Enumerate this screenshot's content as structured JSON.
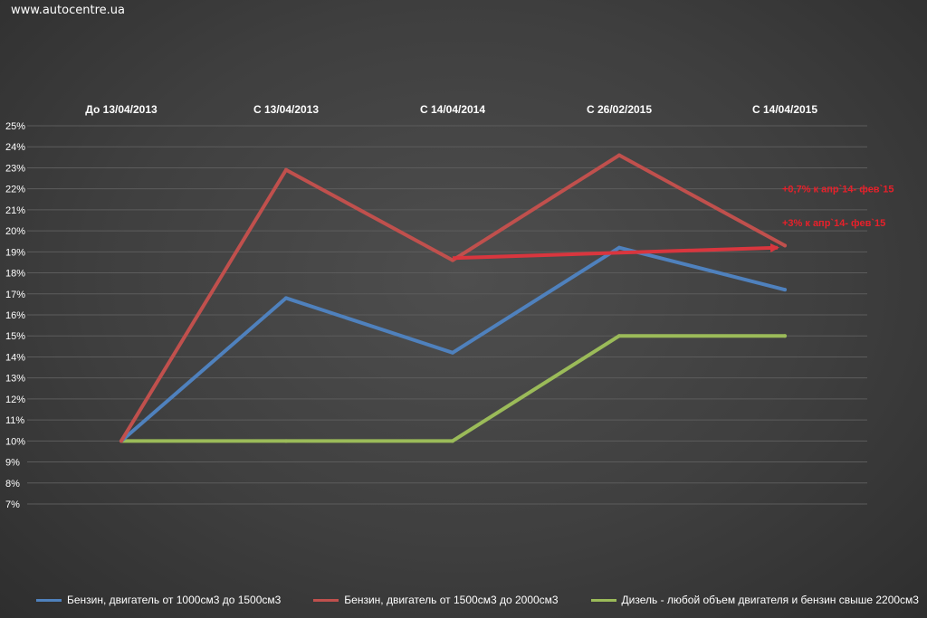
{
  "watermark": "www.autocentre.ua",
  "chart_data": {
    "type": "line",
    "title": "",
    "xlabel": "",
    "ylabel": "",
    "categories": [
      "До 13/04/2013",
      "С 13/04/2013",
      "С 14/04/2014",
      "С 26/02/2015",
      "С 14/04/2015"
    ],
    "y_ticks": [
      "25%",
      "24%",
      "23%",
      "22%",
      "21%",
      "20%",
      "19%",
      "18%",
      "17%",
      "16%",
      "15%",
      "14%",
      "13%",
      "12%",
      "11%",
      "10%",
      "9%",
      "8%",
      "7%"
    ],
    "ylim": [
      7,
      25
    ],
    "grid": true,
    "legend_position": "bottom",
    "series": [
      {
        "name": "Бензин, двигатель от 1000см3  до 1500см3",
        "color": "#4f81bd",
        "values": [
          10,
          16.8,
          14.2,
          19.2,
          17.2
        ]
      },
      {
        "name": "Бензин, двигатель от 1500см3  до 2000см3",
        "color": "#c0504d",
        "values": [
          10,
          22.9,
          18.6,
          23.6,
          19.3
        ]
      },
      {
        "name": "Дизель - любой объем двигателя и бензин свыше 2200см3",
        "color": "#9bbb59",
        "values": [
          10,
          10,
          10,
          15,
          15
        ]
      }
    ],
    "trend_arrow": {
      "color": "#d9363e",
      "from": {
        "category_index": 2,
        "value": 18.7
      },
      "to": {
        "category_index": 4,
        "value": 19.2
      }
    },
    "annotations": [
      {
        "text": "+0,7% к апр`14- фев`15",
        "color": "#e8202a",
        "value": 22
      },
      {
        "text": "+3% к апр`14- фев`15",
        "color": "#e8202a",
        "value": 20.4
      }
    ]
  }
}
